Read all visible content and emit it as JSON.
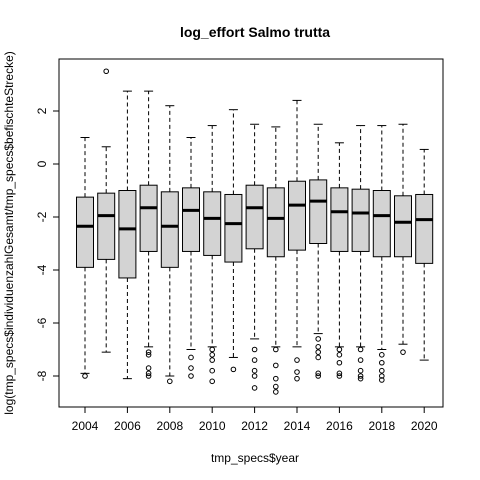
{
  "chart_data": {
    "type": "boxplot",
    "title": "log_effort Salmo trutta",
    "xlabel": "tmp_specs$year",
    "ylabel": "log(tmp_specs$individuenzahlGesamt/tmp_specs$befischteStrecke)",
    "ylim": [
      -9,
      4
    ],
    "y_ticks": [
      -8,
      -6,
      -4,
      -2,
      0,
      2
    ],
    "x_tick_labels": [
      "2004",
      "2006",
      "2008",
      "2010",
      "2012",
      "2014",
      "2016",
      "2018",
      "2020"
    ],
    "colors": {
      "box_fill": "#d3d3d3",
      "stroke": "#000000"
    },
    "boxes": [
      {
        "year": 2004,
        "lower_whisker": -7.9,
        "q1": -3.9,
        "median": -2.35,
        "q3": -1.25,
        "upper_whisker": 1.0,
        "outliers": [
          -8.0
        ]
      },
      {
        "year": 2005,
        "lower_whisker": -7.1,
        "q1": -3.6,
        "median": -1.95,
        "q3": -1.1,
        "upper_whisker": 0.65,
        "outliers": [
          3.5
        ]
      },
      {
        "year": 2006,
        "lower_whisker": -8.1,
        "q1": -4.3,
        "median": -2.45,
        "q3": -1.0,
        "upper_whisker": 2.75,
        "outliers": []
      },
      {
        "year": 2007,
        "lower_whisker": -6.9,
        "q1": -3.3,
        "median": -1.65,
        "q3": -0.8,
        "upper_whisker": 2.75,
        "outliers": [
          -7.1,
          -7.2,
          -7.7,
          -7.9,
          -8.0
        ]
      },
      {
        "year": 2008,
        "lower_whisker": -8.0,
        "q1": -3.9,
        "median": -2.35,
        "q3": -1.05,
        "upper_whisker": 2.2,
        "outliers": [
          -8.2
        ]
      },
      {
        "year": 2009,
        "lower_whisker": -7.0,
        "q1": -3.3,
        "median": -1.75,
        "q3": -0.9,
        "upper_whisker": 1.0,
        "outliers": [
          -7.3,
          -7.7,
          -8.0
        ]
      },
      {
        "year": 2010,
        "lower_whisker": -6.9,
        "q1": -3.45,
        "median": -2.05,
        "q3": -1.05,
        "upper_whisker": 1.45,
        "outliers": [
          -7.0,
          -7.2,
          -7.4,
          -7.8,
          -8.2
        ]
      },
      {
        "year": 2011,
        "lower_whisker": -7.3,
        "q1": -3.7,
        "median": -2.25,
        "q3": -1.15,
        "upper_whisker": 2.05,
        "outliers": [
          -7.75
        ]
      },
      {
        "year": 2012,
        "lower_whisker": -6.6,
        "q1": -3.2,
        "median": -1.65,
        "q3": -0.8,
        "upper_whisker": 1.5,
        "outliers": [
          -7.0,
          -7.4,
          -7.8,
          -8.0,
          -8.45
        ]
      },
      {
        "year": 2013,
        "lower_whisker": -6.9,
        "q1": -3.5,
        "median": -2.05,
        "q3": -0.9,
        "upper_whisker": 1.4,
        "outliers": [
          -7.0,
          -7.6,
          -8.1,
          -8.4,
          -8.6
        ]
      },
      {
        "year": 2014,
        "lower_whisker": -6.9,
        "q1": -3.25,
        "median": -1.55,
        "q3": -0.65,
        "upper_whisker": 2.4,
        "outliers": [
          -7.4,
          -7.85,
          -8.1
        ]
      },
      {
        "year": 2015,
        "lower_whisker": -6.4,
        "q1": -3.0,
        "median": -1.4,
        "q3": -0.6,
        "upper_whisker": 1.5,
        "outliers": [
          -6.6,
          -6.9,
          -7.1,
          -7.3,
          -7.9,
          -8.0
        ]
      },
      {
        "year": 2016,
        "lower_whisker": -6.9,
        "q1": -3.3,
        "median": -1.8,
        "q3": -0.9,
        "upper_whisker": 0.8,
        "outliers": [
          -7.0,
          -7.2,
          -7.5,
          -7.9,
          -8.0
        ]
      },
      {
        "year": 2017,
        "lower_whisker": -6.9,
        "q1": -3.3,
        "median": -1.85,
        "q3": -0.95,
        "upper_whisker": 1.45,
        "outliers": [
          -7.0,
          -7.4,
          -7.8,
          -8.0,
          -8.1
        ]
      },
      {
        "year": 2018,
        "lower_whisker": -7.0,
        "q1": -3.5,
        "median": -1.95,
        "q3": -1.0,
        "upper_whisker": 1.45,
        "outliers": [
          -7.2,
          -7.5,
          -7.8,
          -8.0,
          -8.15
        ]
      },
      {
        "year": 2019,
        "lower_whisker": -6.8,
        "q1": -3.5,
        "median": -2.2,
        "q3": -1.2,
        "upper_whisker": 1.5,
        "outliers": [
          -7.1
        ]
      },
      {
        "year": 2020,
        "lower_whisker": -7.4,
        "q1": -3.75,
        "median": -2.1,
        "q3": -1.15,
        "upper_whisker": 0.55,
        "outliers": []
      }
    ]
  }
}
